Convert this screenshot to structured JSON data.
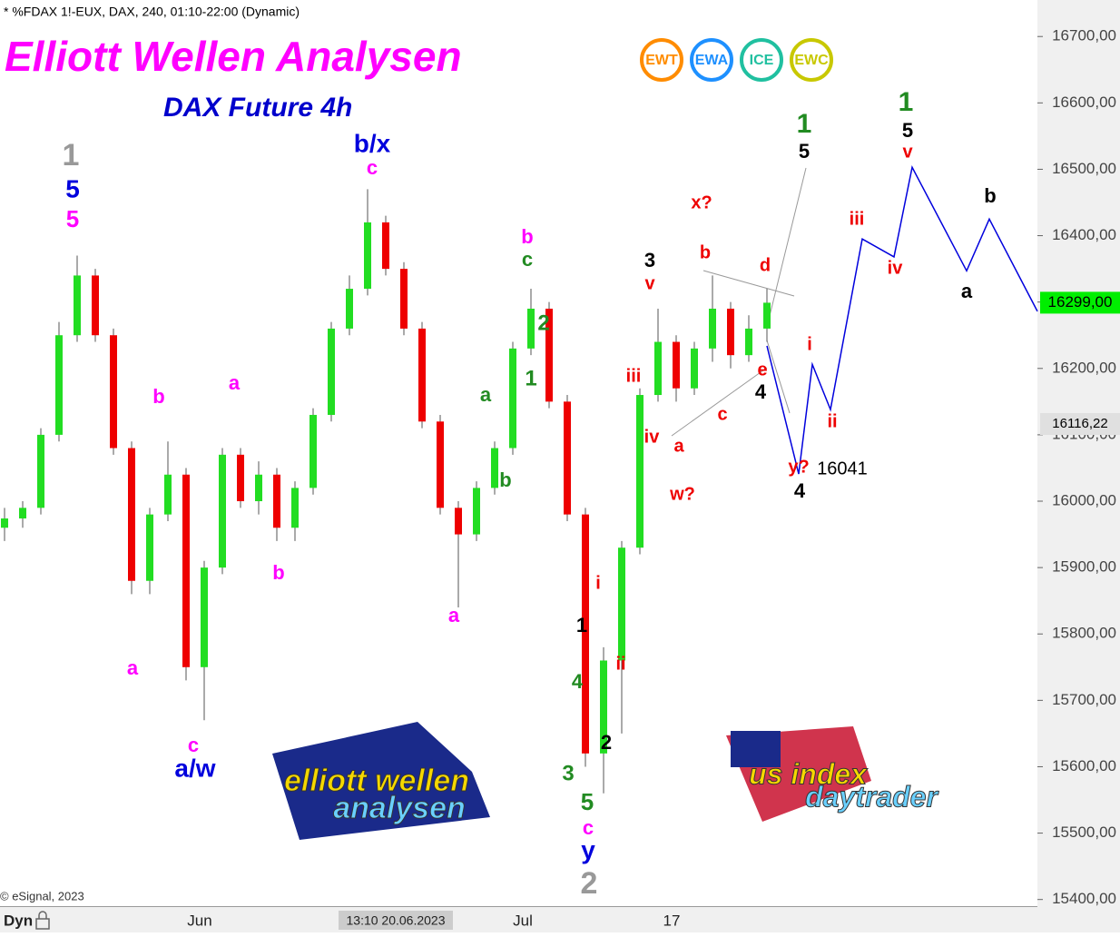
{
  "chart_data": {
    "type": "candlestick",
    "header": "* %FDAX 1!-EUX, DAX, 240, 01:10-22:00 (Dynamic)",
    "title": "Elliott Wellen Analysen",
    "subtitle": "DAX Future 4h",
    "badges": [
      "EWT",
      "EWA",
      "ICE",
      "EWC"
    ],
    "copyright": "© eSignal, 2023",
    "x_labels": [
      "Dyn",
      "Jun",
      "13:10 20.06.2023",
      "Jul",
      "17"
    ],
    "logos": [
      "elliott wellen",
      "analysen",
      "us index",
      "daytrader"
    ],
    "ylim": [
      15390,
      16755
    ],
    "xlim": [
      -0.25,
      56.9
    ],
    "yticks": [
      {
        "value": 15400,
        "label": "15400,00"
      },
      {
        "value": 15500,
        "label": "15500,00"
      },
      {
        "value": 15600,
        "label": "15600,00"
      },
      {
        "value": 15700,
        "label": "15700,00"
      },
      {
        "value": 15800,
        "label": "15800,00"
      },
      {
        "value": 15900,
        "label": "15900,00"
      },
      {
        "value": 16000,
        "label": "16000,00"
      },
      {
        "value": 16100,
        "label": "16100,00"
      },
      {
        "value": 16200,
        "label": "16200,00"
      },
      {
        "value": 16300,
        "label": "16300,00"
      },
      {
        "value": 16400,
        "label": "16400,00"
      },
      {
        "value": 16500,
        "label": "16500,00"
      },
      {
        "value": 16600,
        "label": "16600,00"
      },
      {
        "value": 16700,
        "label": "16700,00"
      }
    ],
    "price_tags": [
      {
        "value": 16299,
        "label": "16299,00",
        "color": "#00ee00"
      },
      {
        "value": 16116.22,
        "label": "16116,22",
        "color": "#e0e0e0"
      }
    ],
    "up_color": "#22dd22",
    "down_color": "#ee0000",
    "open": [
      15960,
      15974,
      15990,
      16100,
      16250,
      16340,
      16250,
      16080,
      15880,
      15980,
      16040,
      15750,
      15900,
      16070,
      16000,
      16040,
      15960,
      16020,
      16130,
      16260,
      16320,
      16420,
      16350,
      16260,
      16120,
      15990,
      15950,
      16020,
      16080,
      16230,
      16290,
      16150,
      15980,
      15620,
      15760,
      15930,
      16160,
      16240,
      16170,
      16230,
      16290,
      16220,
      16260
    ],
    "close": [
      15974,
      15990,
      16100,
      16250,
      16340,
      16250,
      16080,
      15880,
      15980,
      16040,
      15750,
      15900,
      16070,
      16000,
      16040,
      15960,
      16020,
      16130,
      16260,
      16320,
      16420,
      16350,
      16260,
      16120,
      15990,
      15950,
      16020,
      16080,
      16230,
      16290,
      16150,
      15980,
      15620,
      15760,
      15930,
      16160,
      16240,
      16170,
      16230,
      16290,
      16220,
      16260,
      16299
    ],
    "high": [
      15990,
      16000,
      16110,
      16270,
      16370,
      16350,
      16260,
      16090,
      15990,
      16090,
      16050,
      15910,
      16080,
      16080,
      16060,
      16050,
      16030,
      16140,
      16270,
      16340,
      16470,
      16430,
      16360,
      16270,
      16130,
      16000,
      16030,
      16090,
      16240,
      16320,
      16300,
      16160,
      15990,
      15780,
      15940,
      16170,
      16290,
      16250,
      16240,
      16340,
      16300,
      16280,
      16320
    ],
    "low": [
      15940,
      15960,
      15980,
      16090,
      16240,
      16240,
      16070,
      15860,
      15860,
      15970,
      15730,
      15670,
      15890,
      15990,
      15980,
      15940,
      15940,
      16010,
      16120,
      16250,
      16310,
      16340,
      16250,
      16110,
      15980,
      15840,
      15940,
      16010,
      16070,
      16220,
      16140,
      15970,
      15600,
      15560,
      15650,
      15920,
      16150,
      16150,
      16160,
      16210,
      16200,
      16210,
      16240
    ],
    "forecast": {
      "color": "#0000dd",
      "x": [
        42,
        43.75,
        44.5,
        45.5,
        47.25,
        49,
        50,
        53,
        54.25,
        56.9
      ],
      "values": [
        16234,
        16041,
        16206,
        16138,
        16395,
        16368,
        16503,
        16347,
        16425,
        16286
      ]
    },
    "annotations": [
      {
        "text": "1",
        "color": "#999999"
      },
      {
        "text": "5",
        "color": "#0000dd"
      },
      {
        "text": "5",
        "color": "#ff00ff"
      },
      {
        "text": "b",
        "color": "#ff00ff"
      },
      {
        "text": "a",
        "color": "#ff00ff"
      },
      {
        "text": "c",
        "color": "#ff00ff"
      },
      {
        "text": "a/w",
        "color": "#0000dd"
      },
      {
        "text": "a",
        "color": "#ff00ff"
      },
      {
        "text": "b",
        "color": "#ff00ff"
      },
      {
        "text": "b/x",
        "color": "#0000dd"
      },
      {
        "text": "c",
        "color": "#ff00ff"
      },
      {
        "text": "a",
        "color": "#ff00ff"
      },
      {
        "text": "b",
        "color": "#ff00ff"
      },
      {
        "text": "c",
        "color": "#228b22"
      },
      {
        "text": "a",
        "color": "#228b22"
      },
      {
        "text": "b",
        "color": "#228b22"
      },
      {
        "text": "2",
        "color": "#228b22"
      },
      {
        "text": "1",
        "color": "#228b22"
      },
      {
        "text": "3",
        "color": "#000000"
      },
      {
        "text": "v",
        "color": "#ee0000"
      },
      {
        "text": "iii",
        "color": "#ee0000"
      },
      {
        "text": "iv",
        "color": "#ee0000"
      },
      {
        "text": "a",
        "color": "#ee0000"
      },
      {
        "text": "w?",
        "color": "#ee0000"
      },
      {
        "text": "c",
        "color": "#ee0000"
      },
      {
        "text": "b",
        "color": "#ee0000"
      },
      {
        "text": "x?",
        "color": "#ee0000"
      },
      {
        "text": "d",
        "color": "#ee0000"
      },
      {
        "text": "e",
        "color": "#ee0000"
      },
      {
        "text": "4",
        "color": "#000000"
      },
      {
        "text": "1",
        "color": "#228b22"
      },
      {
        "text": "5",
        "color": "#000000"
      },
      {
        "text": "1",
        "color": "#228b22"
      },
      {
        "text": "5",
        "color": "#000000"
      },
      {
        "text": "v",
        "color": "#ee0000"
      },
      {
        "text": "iii",
        "color": "#ee0000"
      },
      {
        "text": "iv",
        "color": "#ee0000"
      },
      {
        "text": "b",
        "color": "#000000"
      },
      {
        "text": "a",
        "color": "#000000"
      },
      {
        "text": "i",
        "color": "#ee0000"
      },
      {
        "text": "ii",
        "color": "#ee0000"
      },
      {
        "text": "y?",
        "color": "#ee0000"
      },
      {
        "text": "16041",
        "color": "#000000"
      },
      {
        "text": "4",
        "color": "#000000"
      },
      {
        "text": "i",
        "color": "#ee0000"
      },
      {
        "text": "1",
        "color": "#000000"
      },
      {
        "text": "4",
        "color": "#228b22"
      },
      {
        "text": "2",
        "color": "#000000"
      },
      {
        "text": "ii",
        "color": "#ee0000"
      },
      {
        "text": "3",
        "color": "#228b22"
      },
      {
        "text": "5",
        "color": "#228b22"
      },
      {
        "text": "c",
        "color": "#ff00ff"
      },
      {
        "text": "y",
        "color": "#0000dd"
      },
      {
        "text": "2",
        "color": "#999999"
      }
    ]
  }
}
